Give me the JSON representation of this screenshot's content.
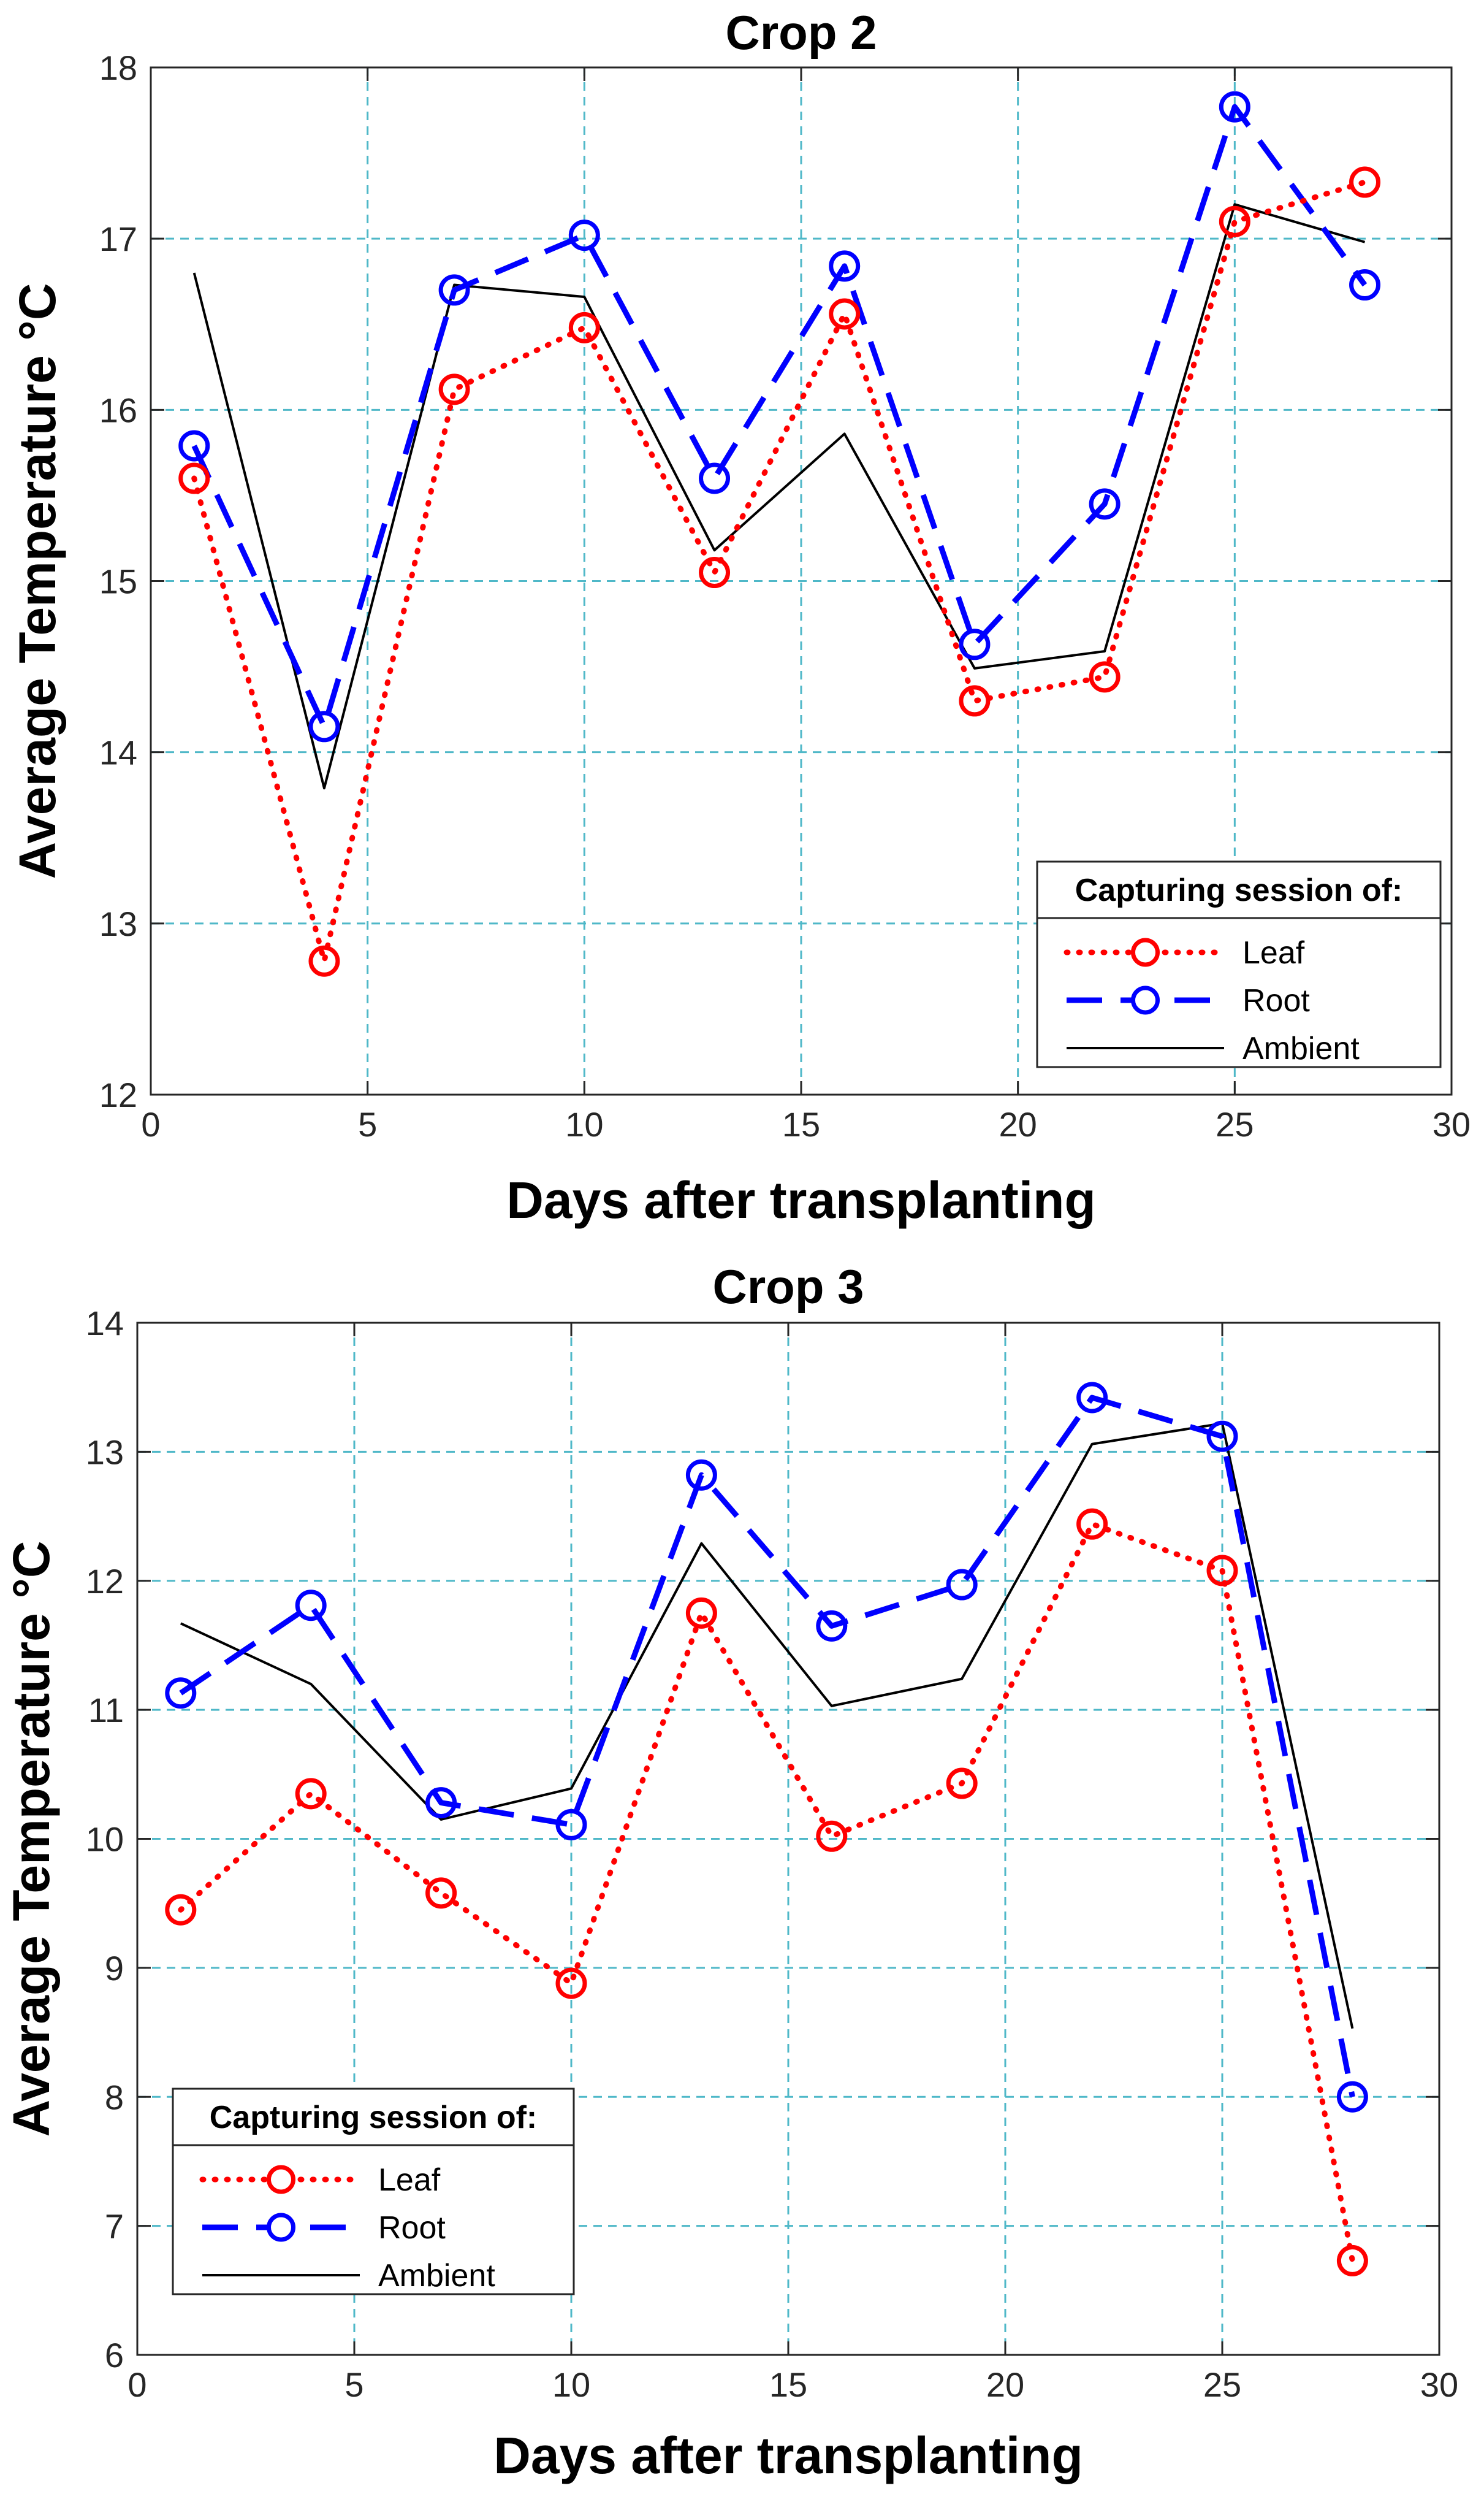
{
  "chart_data": [
    {
      "type": "line",
      "title": "Crop 2",
      "xlabel": "Days after transplanting",
      "ylabel": "Average Temperature °C",
      "xlim": [
        0,
        30
      ],
      "ylim": [
        12,
        18
      ],
      "xticks": [
        "0",
        "5",
        "10",
        "15",
        "20",
        "25",
        "30"
      ],
      "yticks": [
        "12",
        "13",
        "14",
        "15",
        "16",
        "17",
        "18"
      ],
      "grid": true,
      "legend_title": "Capturing session of:",
      "legend_position": "bottom-right",
      "series": [
        {
          "name": "Leaf",
          "color": "#ff0000",
          "style": "dotted",
          "marker": "circle",
          "x": [
            1,
            4,
            7,
            10,
            13,
            16,
            19,
            22,
            25,
            28
          ],
          "values": [
            15.6,
            12.78,
            16.12,
            16.48,
            15.05,
            16.56,
            14.3,
            14.44,
            17.1,
            17.33
          ]
        },
        {
          "name": "Root",
          "color": "#0000ff",
          "style": "dashed",
          "marker": "circle",
          "x": [
            1,
            4,
            7,
            10,
            13,
            16,
            19,
            22,
            25,
            28
          ],
          "values": [
            15.79,
            14.15,
            16.7,
            17.02,
            15.6,
            16.84,
            14.63,
            15.45,
            17.77,
            16.73
          ]
        },
        {
          "name": "Ambient",
          "color": "#000000",
          "style": "solid",
          "marker": "none",
          "x": [
            1,
            4,
            7,
            10,
            13,
            16,
            19,
            22,
            25,
            28
          ],
          "values": [
            16.8,
            13.79,
            16.73,
            16.66,
            15.18,
            15.86,
            14.49,
            14.59,
            17.2,
            16.98
          ]
        }
      ]
    },
    {
      "type": "line",
      "title": "Crop 3",
      "xlabel": "Days after transplanting",
      "ylabel": "Average Temperature °C",
      "xlim": [
        0,
        30
      ],
      "ylim": [
        6,
        14
      ],
      "xticks": [
        "0",
        "5",
        "10",
        "15",
        "20",
        "25",
        "30"
      ],
      "yticks": [
        "6",
        "7",
        "8",
        "9",
        "10",
        "11",
        "12",
        "13",
        "14"
      ],
      "grid": true,
      "legend_title": "Capturing session of:",
      "legend_position": "bottom-left",
      "series": [
        {
          "name": "Leaf",
          "color": "#ff0000",
          "style": "dotted",
          "marker": "circle",
          "x": [
            1,
            4,
            7,
            10,
            13,
            16,
            19,
            22,
            25,
            28
          ],
          "values": [
            9.45,
            10.35,
            9.58,
            8.88,
            11.75,
            10.02,
            10.43,
            12.44,
            12.08,
            6.73
          ]
        },
        {
          "name": "Root",
          "color": "#0000ff",
          "style": "dashed",
          "marker": "circle",
          "x": [
            1,
            4,
            7,
            10,
            13,
            16,
            19,
            22,
            25,
            28
          ],
          "values": [
            11.13,
            11.81,
            10.28,
            10.11,
            12.82,
            11.65,
            11.97,
            13.42,
            13.12,
            8.0
          ]
        },
        {
          "name": "Ambient",
          "color": "#000000",
          "style": "solid",
          "marker": "none",
          "x": [
            1,
            4,
            7,
            10,
            13,
            16,
            19,
            22,
            25,
            28
          ],
          "values": [
            11.67,
            11.2,
            10.15,
            10.39,
            12.29,
            11.03,
            11.24,
            13.06,
            13.22,
            8.53
          ]
        }
      ]
    }
  ]
}
